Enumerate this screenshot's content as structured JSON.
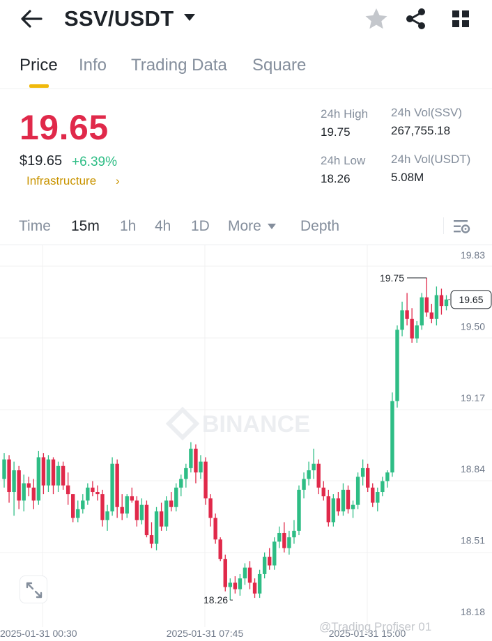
{
  "header": {
    "pair": "SSV/USDT",
    "icons": [
      "back-arrow-icon",
      "caret-down-icon",
      "star-icon",
      "share-icon",
      "grid-icon"
    ]
  },
  "tabs": [
    {
      "label": "Price",
      "active": true
    },
    {
      "label": "Info",
      "active": false
    },
    {
      "label": "Trading Data",
      "active": false
    },
    {
      "label": "Square",
      "active": false
    }
  ],
  "ticker": {
    "last_price": "19.65",
    "usd_price": "$19.65",
    "change": "+6.39%",
    "sector": "Infrastructure",
    "sector_arrow": "›",
    "stats": {
      "high_label": "24h High",
      "high_value": "19.75",
      "low_label": "24h Low",
      "low_value": "18.26",
      "vol_base_label": "24h Vol(SSV)",
      "vol_base_value": "267,755.18",
      "vol_quote_label": "24h Vol(USDT)",
      "vol_quote_value": "5.08M"
    }
  },
  "intervals": {
    "items": [
      "Time",
      "15m",
      "1h",
      "4h",
      "1D",
      "More",
      "Depth"
    ],
    "active": "15m"
  },
  "colors": {
    "up": "#2ebd85",
    "down": "#e0294a",
    "accent": "#f0b90b",
    "sector": "#c99400"
  },
  "chart_data": {
    "type": "candlestick",
    "ylim": [
      18.18,
      19.83
    ],
    "y_ticks": [
      "19.83",
      "19.50",
      "19.17",
      "18.84",
      "18.51",
      "18.18"
    ],
    "x_ticks": [
      "2025-01-31 00:30",
      "2025-01-31 07:45",
      "2025-01-31 15:00"
    ],
    "last_price_label": "19.65",
    "high_label": "19.75",
    "low_label": "18.26",
    "watermark": "BINANCE",
    "credit": "@Trading Profiser 01",
    "candles": [
      [
        18.82,
        18.94,
        18.78,
        18.91
      ],
      [
        18.91,
        18.93,
        18.71,
        18.76
      ],
      [
        18.76,
        18.9,
        18.65,
        18.86
      ],
      [
        18.86,
        18.88,
        18.68,
        18.72
      ],
      [
        18.72,
        18.84,
        18.67,
        18.8
      ],
      [
        18.8,
        18.83,
        18.74,
        18.78
      ],
      [
        18.78,
        18.82,
        18.68,
        18.72
      ],
      [
        18.72,
        18.95,
        18.7,
        18.92
      ],
      [
        18.92,
        18.94,
        18.75,
        18.79
      ],
      [
        18.79,
        18.93,
        18.76,
        18.91
      ],
      [
        18.91,
        18.92,
        18.75,
        18.79
      ],
      [
        18.79,
        18.9,
        18.76,
        18.88
      ],
      [
        18.88,
        18.9,
        18.77,
        18.79
      ],
      [
        18.79,
        18.85,
        18.7,
        18.75
      ],
      [
        18.75,
        18.75,
        18.62,
        18.64
      ],
      [
        18.64,
        18.72,
        18.62,
        18.68
      ],
      [
        18.68,
        18.75,
        18.66,
        18.72
      ],
      [
        18.72,
        18.8,
        18.7,
        18.78
      ],
      [
        18.78,
        18.81,
        18.74,
        18.76
      ],
      [
        18.76,
        18.79,
        18.72,
        18.75
      ],
      [
        18.75,
        18.77,
        18.6,
        18.63
      ],
      [
        18.63,
        18.7,
        18.58,
        18.67
      ],
      [
        18.67,
        18.92,
        18.65,
        18.89
      ],
      [
        18.89,
        18.91,
        18.64,
        18.69
      ],
      [
        18.69,
        18.75,
        18.63,
        18.66
      ],
      [
        18.66,
        18.75,
        18.64,
        18.74
      ],
      [
        18.74,
        18.78,
        18.71,
        18.72
      ],
      [
        18.72,
        18.74,
        18.6,
        18.63
      ],
      [
        18.63,
        18.73,
        18.61,
        18.7
      ],
      [
        18.7,
        18.72,
        18.55,
        18.56
      ],
      [
        18.56,
        18.62,
        18.5,
        18.52
      ],
      [
        18.52,
        18.69,
        18.49,
        18.67
      ],
      [
        18.67,
        18.71,
        18.58,
        18.6
      ],
      [
        18.6,
        18.74,
        18.58,
        18.72
      ],
      [
        18.72,
        18.76,
        18.67,
        18.69
      ],
      [
        18.69,
        18.8,
        18.67,
        18.78
      ],
      [
        18.78,
        18.84,
        18.74,
        18.82
      ],
      [
        18.82,
        18.89,
        18.78,
        18.87
      ],
      [
        18.87,
        18.99,
        18.85,
        18.96
      ],
      [
        18.96,
        18.98,
        18.8,
        18.85
      ],
      [
        18.85,
        18.93,
        18.82,
        18.9
      ],
      [
        18.9,
        18.92,
        18.7,
        18.73
      ],
      [
        18.73,
        18.75,
        18.6,
        18.64
      ],
      [
        18.64,
        18.66,
        18.52,
        18.54
      ],
      [
        18.54,
        18.55,
        18.44,
        18.45
      ],
      [
        18.45,
        18.47,
        18.3,
        18.32
      ],
      [
        18.32,
        18.36,
        18.26,
        18.34
      ],
      [
        18.34,
        18.37,
        18.29,
        18.31
      ],
      [
        18.31,
        18.38,
        18.28,
        18.36
      ],
      [
        18.36,
        18.43,
        18.33,
        18.41
      ],
      [
        18.41,
        18.44,
        18.31,
        18.34
      ],
      [
        18.34,
        18.36,
        18.27,
        18.29
      ],
      [
        18.29,
        18.4,
        18.27,
        18.38
      ],
      [
        18.38,
        18.48,
        18.36,
        18.46
      ],
      [
        18.46,
        18.5,
        18.4,
        18.42
      ],
      [
        18.42,
        18.55,
        18.4,
        18.53
      ],
      [
        18.53,
        18.6,
        18.5,
        18.57
      ],
      [
        18.57,
        18.62,
        18.48,
        18.5
      ],
      [
        18.5,
        18.58,
        18.47,
        18.55
      ],
      [
        18.55,
        18.63,
        18.52,
        18.58
      ],
      [
        18.58,
        18.79,
        18.56,
        18.77
      ],
      [
        18.77,
        18.85,
        18.73,
        18.82
      ],
      [
        18.82,
        18.9,
        18.79,
        18.86
      ],
      [
        18.86,
        18.96,
        18.82,
        18.89
      ],
      [
        18.89,
        18.91,
        18.75,
        18.78
      ],
      [
        18.78,
        18.81,
        18.72,
        18.74
      ],
      [
        18.74,
        18.77,
        18.6,
        18.62
      ],
      [
        18.62,
        18.75,
        18.6,
        18.73
      ],
      [
        18.73,
        18.76,
        18.65,
        18.67
      ],
      [
        18.67,
        18.8,
        18.65,
        18.77
      ],
      [
        18.77,
        18.79,
        18.66,
        18.68
      ],
      [
        18.68,
        18.72,
        18.64,
        18.7
      ],
      [
        18.7,
        18.85,
        18.68,
        18.83
      ],
      [
        18.83,
        18.91,
        18.79,
        18.87
      ],
      [
        18.87,
        18.89,
        18.76,
        18.78
      ],
      [
        18.78,
        18.8,
        18.69,
        18.71
      ],
      [
        18.71,
        18.78,
        18.67,
        18.76
      ],
      [
        18.76,
        18.83,
        18.74,
        18.81
      ],
      [
        18.81,
        18.86,
        18.78,
        18.85
      ],
      [
        18.85,
        19.22,
        18.83,
        19.18
      ],
      [
        19.18,
        19.53,
        19.15,
        19.51
      ],
      [
        19.51,
        19.64,
        19.48,
        19.6
      ],
      [
        19.6,
        19.68,
        19.53,
        19.56
      ],
      [
        19.56,
        19.61,
        19.45,
        19.47
      ],
      [
        19.47,
        19.55,
        19.45,
        19.53
      ],
      [
        19.53,
        19.68,
        19.51,
        19.66
      ],
      [
        19.66,
        19.75,
        19.57,
        19.59
      ],
      [
        19.59,
        19.63,
        19.54,
        19.56
      ],
      [
        19.56,
        19.71,
        19.53,
        19.67
      ],
      [
        19.67,
        19.7,
        19.58,
        19.62
      ],
      [
        19.62,
        19.67,
        19.6,
        19.65
      ]
    ]
  }
}
